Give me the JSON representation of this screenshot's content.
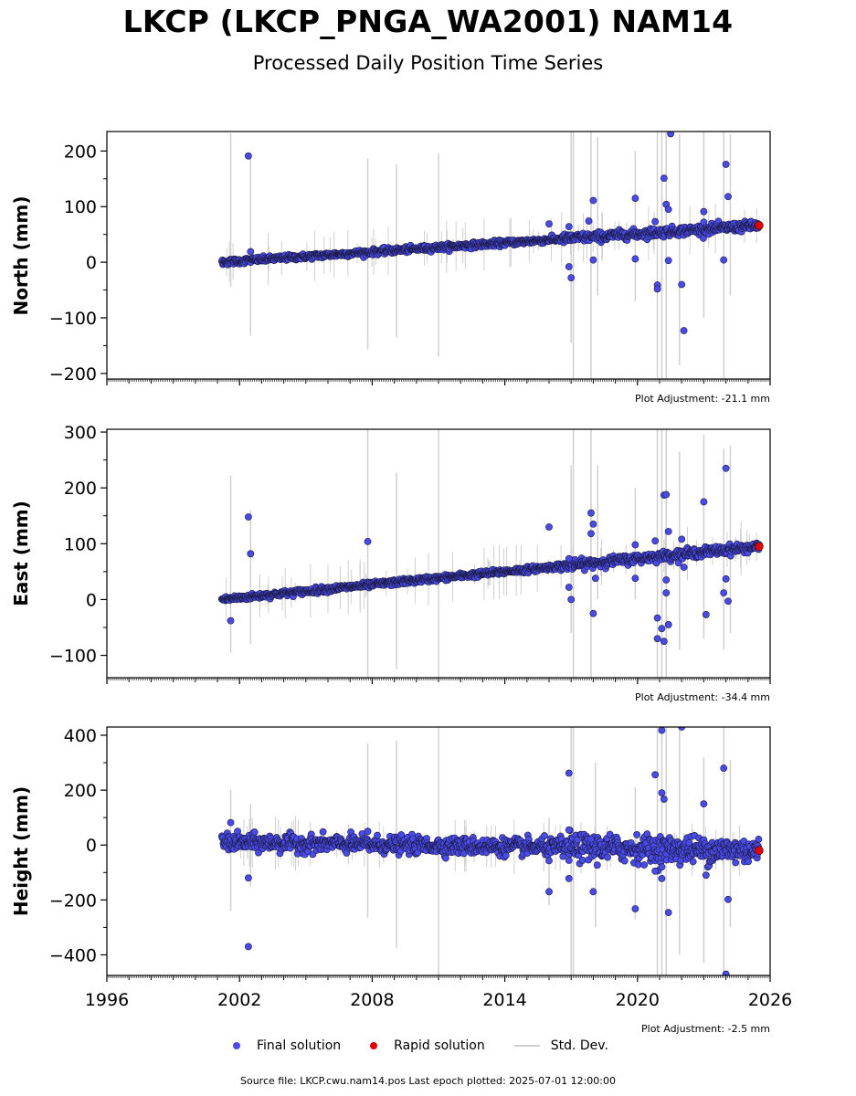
{
  "header": {
    "title": "LKCP (LKCP_PNGA_WA2001) NAM14",
    "subtitle": "Processed Daily Position Time Series"
  },
  "colors": {
    "final": "#4a4ae8",
    "rapid": "#e00000",
    "stddev": "#d0d0d0",
    "edge": "#1a1a40"
  },
  "legend": {
    "final_label": "Final solution",
    "rapid_label": "Rapid solution",
    "stddev_label": "Std. Dev."
  },
  "footer": {
    "source": "Source file: LKCP.cwu.nam14.pos  Last epoch plotted: 2025-07-01 12:00:00"
  },
  "chart_data": [
    {
      "type": "scatter",
      "ylabel": "North (mm)",
      "adjustment": "Plot Adjustment: -21.1 mm",
      "xlim": [
        1996,
        2026
      ],
      "ylim": [
        -210,
        235
      ],
      "yticks": [
        -200,
        -100,
        0,
        100,
        200
      ],
      "ytick_labels": [
        "−200",
        "−100",
        "0",
        "100",
        "200"
      ],
      "trend": {
        "start": [
          2001.2,
          0
        ],
        "end": [
          2025.5,
          66
        ],
        "scatter": 2.5
      },
      "outliers": [
        [
          2002.4,
          191
        ],
        [
          2002.5,
          19
        ],
        [
          2016.0,
          69
        ],
        [
          2016.9,
          64
        ],
        [
          2016.9,
          -8
        ],
        [
          2017.0,
          -28
        ],
        [
          2017.8,
          74
        ],
        [
          2018.0,
          111
        ],
        [
          2018.0,
          4
        ],
        [
          2019.9,
          115
        ],
        [
          2019.9,
          6
        ],
        [
          2020.8,
          73
        ],
        [
          2020.9,
          -41
        ],
        [
          2020.9,
          -48
        ],
        [
          2021.2,
          151
        ],
        [
          2021.3,
          104
        ],
        [
          2021.4,
          95
        ],
        [
          2021.5,
          231
        ],
        [
          2021.4,
          3
        ],
        [
          2022.0,
          -40
        ],
        [
          2022.1,
          -123
        ],
        [
          2023.0,
          91
        ],
        [
          2023.0,
          72
        ],
        [
          2024.0,
          176
        ],
        [
          2024.1,
          118
        ],
        [
          2023.9,
          4
        ]
      ],
      "stddev_bars": [
        [
          2001.6,
          -45,
          232
        ],
        [
          2002.5,
          -132,
          195
        ],
        [
          2007.8,
          -157,
          187
        ],
        [
          2009.1,
          -135,
          175
        ],
        [
          2011.0,
          -170,
          196
        ],
        [
          2017.0,
          -145,
          235
        ],
        [
          2017.1,
          -210,
          235
        ],
        [
          2017.9,
          -210,
          235
        ],
        [
          2018.2,
          -60,
          225
        ],
        [
          2019.9,
          -70,
          200
        ],
        [
          2020.9,
          -210,
          235
        ],
        [
          2021.1,
          -210,
          235
        ],
        [
          2021.3,
          -210,
          235
        ],
        [
          2021.9,
          -185,
          230
        ],
        [
          2023.0,
          -100,
          235
        ],
        [
          2023.9,
          -210,
          235
        ],
        [
          2024.2,
          -60,
          230
        ]
      ],
      "rapid": {
        "x": 2025.5,
        "y": 66
      },
      "xticks": [
        1996,
        2002,
        2008,
        2014,
        2020,
        2026
      ],
      "xtick_labels": []
    },
    {
      "type": "scatter",
      "ylabel": "East (mm)",
      "adjustment": "Plot Adjustment: -34.4 mm",
      "xlim": [
        1996,
        2026
      ],
      "ylim": [
        -140,
        305
      ],
      "yticks": [
        -100,
        0,
        100,
        200,
        300
      ],
      "ytick_labels": [
        "−100",
        "0",
        "100",
        "200",
        "300"
      ],
      "trend": {
        "start": [
          2001.2,
          0
        ],
        "end": [
          2025.5,
          95
        ],
        "scatter": 2.5
      },
      "outliers": [
        [
          2001.6,
          -38
        ],
        [
          2002.4,
          148
        ],
        [
          2002.5,
          82
        ],
        [
          2007.8,
          104
        ],
        [
          2016.0,
          130
        ],
        [
          2016.9,
          73
        ],
        [
          2016.9,
          22
        ],
        [
          2017.0,
          0
        ],
        [
          2017.9,
          155
        ],
        [
          2018.0,
          135
        ],
        [
          2017.9,
          118
        ],
        [
          2018.1,
          38
        ],
        [
          2018.0,
          -25
        ],
        [
          2019.9,
          98
        ],
        [
          2019.9,
          38
        ],
        [
          2020.8,
          105
        ],
        [
          2020.9,
          -33
        ],
        [
          2020.9,
          -70
        ],
        [
          2021.1,
          -52
        ],
        [
          2021.2,
          187
        ],
        [
          2021.3,
          188
        ],
        [
          2021.4,
          122
        ],
        [
          2021.3,
          35
        ],
        [
          2021.3,
          12
        ],
        [
          2021.4,
          -45
        ],
        [
          2021.2,
          -75
        ],
        [
          2022.0,
          108
        ],
        [
          2022.1,
          58
        ],
        [
          2023.0,
          175
        ],
        [
          2023.1,
          -27
        ],
        [
          2024.0,
          235
        ],
        [
          2024.0,
          37
        ],
        [
          2023.9,
          12
        ],
        [
          2024.1,
          -3
        ]
      ],
      "stddev_bars": [
        [
          2001.6,
          -95,
          222
        ],
        [
          2002.5,
          -80,
          160
        ],
        [
          2007.8,
          -140,
          305
        ],
        [
          2009.1,
          -125,
          228
        ],
        [
          2011.0,
          -140,
          305
        ],
        [
          2017.0,
          -60,
          240
        ],
        [
          2017.1,
          -140,
          305
        ],
        [
          2017.9,
          -140,
          305
        ],
        [
          2018.2,
          0,
          240
        ],
        [
          2019.9,
          0,
          200
        ],
        [
          2020.9,
          -140,
          305
        ],
        [
          2021.1,
          -140,
          305
        ],
        [
          2021.3,
          -140,
          305
        ],
        [
          2021.9,
          -90,
          265
        ],
        [
          2023.0,
          -70,
          295
        ],
        [
          2023.9,
          -90,
          270
        ],
        [
          2024.2,
          -60,
          275
        ]
      ],
      "rapid": {
        "x": 2025.5,
        "y": 95
      },
      "xticks": [
        1996,
        2002,
        2008,
        2014,
        2020,
        2026
      ],
      "xtick_labels": []
    },
    {
      "type": "scatter",
      "ylabel": "Height (mm)",
      "adjustment": "Plot Adjustment: -2.5 mm",
      "xlim": [
        1996,
        2026
      ],
      "ylim": [
        -475,
        430
      ],
      "yticks": [
        -400,
        -200,
        0,
        200,
        400
      ],
      "ytick_labels": [
        "−400",
        "−200",
        "0",
        "200",
        "400"
      ],
      "trend": {
        "start": [
          2001.2,
          10
        ],
        "end": [
          2025.5,
          -20
        ],
        "scatter": 15
      },
      "outliers": [
        [
          2001.6,
          82
        ],
        [
          2002.4,
          -120
        ],
        [
          2002.4,
          -370
        ],
        [
          2007.8,
          50
        ],
        [
          2016.0,
          -57
        ],
        [
          2016.0,
          -170
        ],
        [
          2016.9,
          262
        ],
        [
          2016.9,
          55
        ],
        [
          2016.9,
          -122
        ],
        [
          2017.9,
          22
        ],
        [
          2018.0,
          -170
        ],
        [
          2019.9,
          -232
        ],
        [
          2020.8,
          256
        ],
        [
          2020.8,
          -95
        ],
        [
          2021.1,
          418
        ],
        [
          2021.1,
          190
        ],
        [
          2021.2,
          167
        ],
        [
          2021.1,
          -80
        ],
        [
          2021.1,
          -122
        ],
        [
          2021.4,
          -246
        ],
        [
          2022.0,
          430
        ],
        [
          2023.0,
          150
        ],
        [
          2023.1,
          -110
        ],
        [
          2023.9,
          280
        ],
        [
          2024.1,
          -198
        ],
        [
          2024.0,
          -470
        ]
      ],
      "stddev_bars": [
        [
          2001.6,
          -240,
          200
        ],
        [
          2002.5,
          -150,
          150
        ],
        [
          2007.8,
          -265,
          370
        ],
        [
          2009.1,
          -375,
          380
        ],
        [
          2011.0,
          -475,
          430
        ],
        [
          2016.0,
          -220,
          100
        ],
        [
          2017.0,
          -475,
          430
        ],
        [
          2017.1,
          -475,
          430
        ],
        [
          2018.1,
          -300,
          300
        ],
        [
          2019.9,
          -270,
          210
        ],
        [
          2020.9,
          -475,
          430
        ],
        [
          2021.1,
          -475,
          430
        ],
        [
          2021.3,
          -475,
          430
        ],
        [
          2021.9,
          -400,
          430
        ],
        [
          2023.0,
          -430,
          320
        ],
        [
          2023.9,
          -475,
          430
        ],
        [
          2024.2,
          -300,
          310
        ]
      ],
      "rapid": {
        "x": 2025.5,
        "y": -20
      },
      "xticks": [
        1996,
        2002,
        2008,
        2014,
        2020,
        2026
      ],
      "xtick_labels": [
        "1996",
        "2002",
        "2008",
        "2014",
        "2020",
        "2026"
      ]
    }
  ]
}
